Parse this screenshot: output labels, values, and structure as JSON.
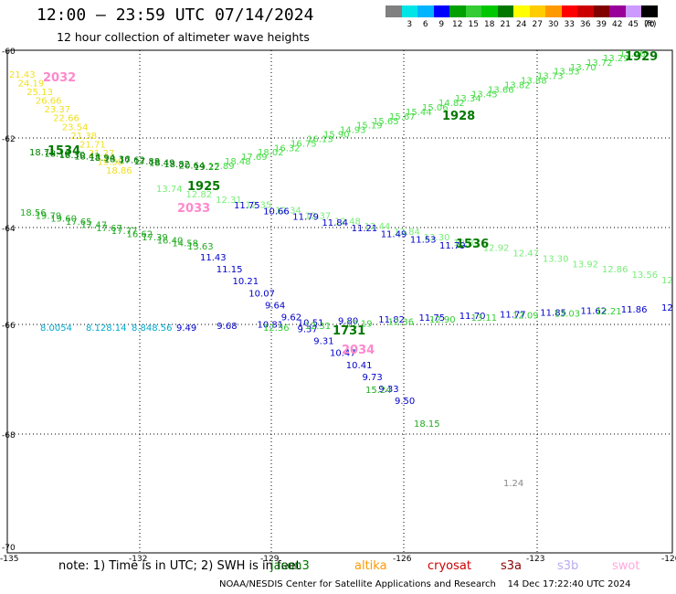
{
  "header": {
    "title": "12:00 – 23:59 UTC 07/14/2024",
    "subtitle": "12 hour collection of altimeter wave heights"
  },
  "colorbar": {
    "unit": "(ft)",
    "bins": [
      {
        "label": "",
        "color": "#808080"
      },
      {
        "label": "3",
        "color": "#00e6e6"
      },
      {
        "label": "6",
        "color": "#00b4ff"
      },
      {
        "label": "9",
        "color": "#0000ff"
      },
      {
        "label": "12",
        "color": "#00a000"
      },
      {
        "label": "15",
        "color": "#33cc33"
      },
      {
        "label": "18",
        "color": "#00c800"
      },
      {
        "label": "21",
        "color": "#007800"
      },
      {
        "label": "24",
        "color": "#ffff00"
      },
      {
        "label": "27",
        "color": "#ffcc00"
      },
      {
        "label": "30",
        "color": "#ff9900"
      },
      {
        "label": "33",
        "color": "#ff0000"
      },
      {
        "label": "36",
        "color": "#cc0000"
      },
      {
        "label": "39",
        "color": "#800000"
      },
      {
        "label": "42",
        "color": "#990099"
      },
      {
        "label": "45",
        "color": "#cc99ff"
      },
      {
        "label": "70",
        "color": "#000000"
      }
    ]
  },
  "map": {
    "lat_labels": [
      "-60",
      "-62",
      "-64",
      "-66",
      "-68",
      "-70"
    ],
    "lon_labels": [
      "-135",
      "-132",
      "-129",
      "-126",
      "-123",
      "-120"
    ],
    "times": [
      {
        "text": "2032",
        "color": "#ff88cc"
      },
      {
        "text": "1534",
        "color": "#007800"
      },
      {
        "text": "1929",
        "color": "#007800"
      },
      {
        "text": "1928",
        "color": "#007800"
      },
      {
        "text": "1925",
        "color": "#007800"
      },
      {
        "text": "2033",
        "color": "#ff88cc"
      },
      {
        "text": "1536",
        "color": "#007800"
      },
      {
        "text": "1731",
        "color": "#007800"
      },
      {
        "text": "2034",
        "color": "#ff88cc"
      }
    ],
    "tracks": [
      {
        "name": "yellow-track",
        "color": "#f0e020",
        "values": [
          "21.43",
          "24.19",
          "25.13",
          "26.66",
          "23.37",
          "22.66",
          "23.54",
          "21.38",
          "21.71",
          "21.27",
          "19.38",
          "18.86"
        ]
      },
      {
        "name": "dark-green-track",
        "color": "#008000",
        "values": [
          "18.71",
          "18.10",
          "18.30",
          "18.43",
          "18.94",
          "18.36",
          "17.62",
          "17.88",
          "18.49",
          "18.82",
          "20.64",
          "19.22"
        ]
      },
      {
        "name": "light-green-track-1",
        "color": "#44dd44",
        "values": [
          "17.89",
          "18.48",
          "17.69",
          "18.02",
          "16.32",
          "16.75",
          "16.13",
          "15.90",
          "14.93",
          "15.19",
          "15.65",
          "15.67",
          "15.44",
          "15.06",
          "14.82",
          "13.34",
          "13.45",
          "13.66",
          "13.82",
          "13.88",
          "13.73",
          "13.53",
          "13.70",
          "13.72",
          "13.29",
          "13.46"
        ]
      },
      {
        "name": "green-track-2",
        "color": "#22aa22",
        "values": [
          "18.56",
          "19.79",
          "19.60",
          "17.65",
          "17.47",
          "17.67",
          "17.77",
          "16.62",
          "17.39",
          "16.40",
          "14.58",
          "13.63"
        ]
      },
      {
        "name": "light-green-track-3",
        "color": "#77ee77",
        "values": [
          "13.74",
          "12.82",
          "12.31",
          "12.35",
          "12.34",
          "12.37",
          "12.48",
          "12.44",
          "13.84",
          "13.30",
          "12.83",
          "12.92",
          "12.47",
          "13.30",
          "13.92",
          "12.86",
          "13.56",
          "12"
        ]
      },
      {
        "name": "blue-track-1",
        "color": "#0000cc",
        "values": [
          "11.75",
          "10.66",
          "11.79",
          "11.84",
          "11.21",
          "11.49",
          "11.53",
          "11.79"
        ]
      },
      {
        "name": "blue-track-2",
        "color": "#0000cc",
        "values": [
          "11.43",
          "11.15",
          "10.21",
          "10.07",
          "9.64",
          "9.62",
          "9.37",
          "9.31",
          "10.47",
          "10.41",
          "9.73",
          "9.33",
          "9.50"
        ]
      },
      {
        "name": "cyan-track",
        "color": "#00aacc",
        "values": [
          "8.0054",
          "8.128.14",
          "8.848.56"
        ]
      },
      {
        "name": "blue-track-3",
        "color": "#0000cc",
        "values": [
          "9.49",
          "9.68",
          "10.81",
          "10.51",
          "9.80",
          "11.82",
          "11.75",
          "11.70",
          "11.77",
          "11.85",
          "11.62",
          "11.86",
          "12"
        ]
      },
      {
        "name": "green-track-4",
        "color": "#33cc33",
        "values": [
          "12.36",
          "12.31",
          "12.19",
          "12.36",
          "12.90",
          "13.11",
          "12.09",
          "13.03",
          "12.21"
        ]
      },
      {
        "name": "green-track-5",
        "color": "#22aa22",
        "values": [
          "15.24",
          "18.15"
        ]
      },
      {
        "name": "gray-track",
        "color": "#888888",
        "values": [
          "1.24"
        ]
      }
    ]
  },
  "footer": {
    "note": "note: 1) Time is in UTC; 2) SWH is in feet",
    "satellites": [
      {
        "name": "jason3",
        "color": "#007800"
      },
      {
        "name": "altika",
        "color": "#ff9900"
      },
      {
        "name": "cryosat",
        "color": "#cc0000"
      },
      {
        "name": "s3a",
        "color": "#880000"
      },
      {
        "name": "s3b",
        "color": "#bbaaee"
      },
      {
        "name": "swot",
        "color": "#ffaadd"
      }
    ],
    "credit": "NOAA/NESDIS Center for Satellite Applications and Research    14 Dec 17:22:40 UTC 2024"
  }
}
